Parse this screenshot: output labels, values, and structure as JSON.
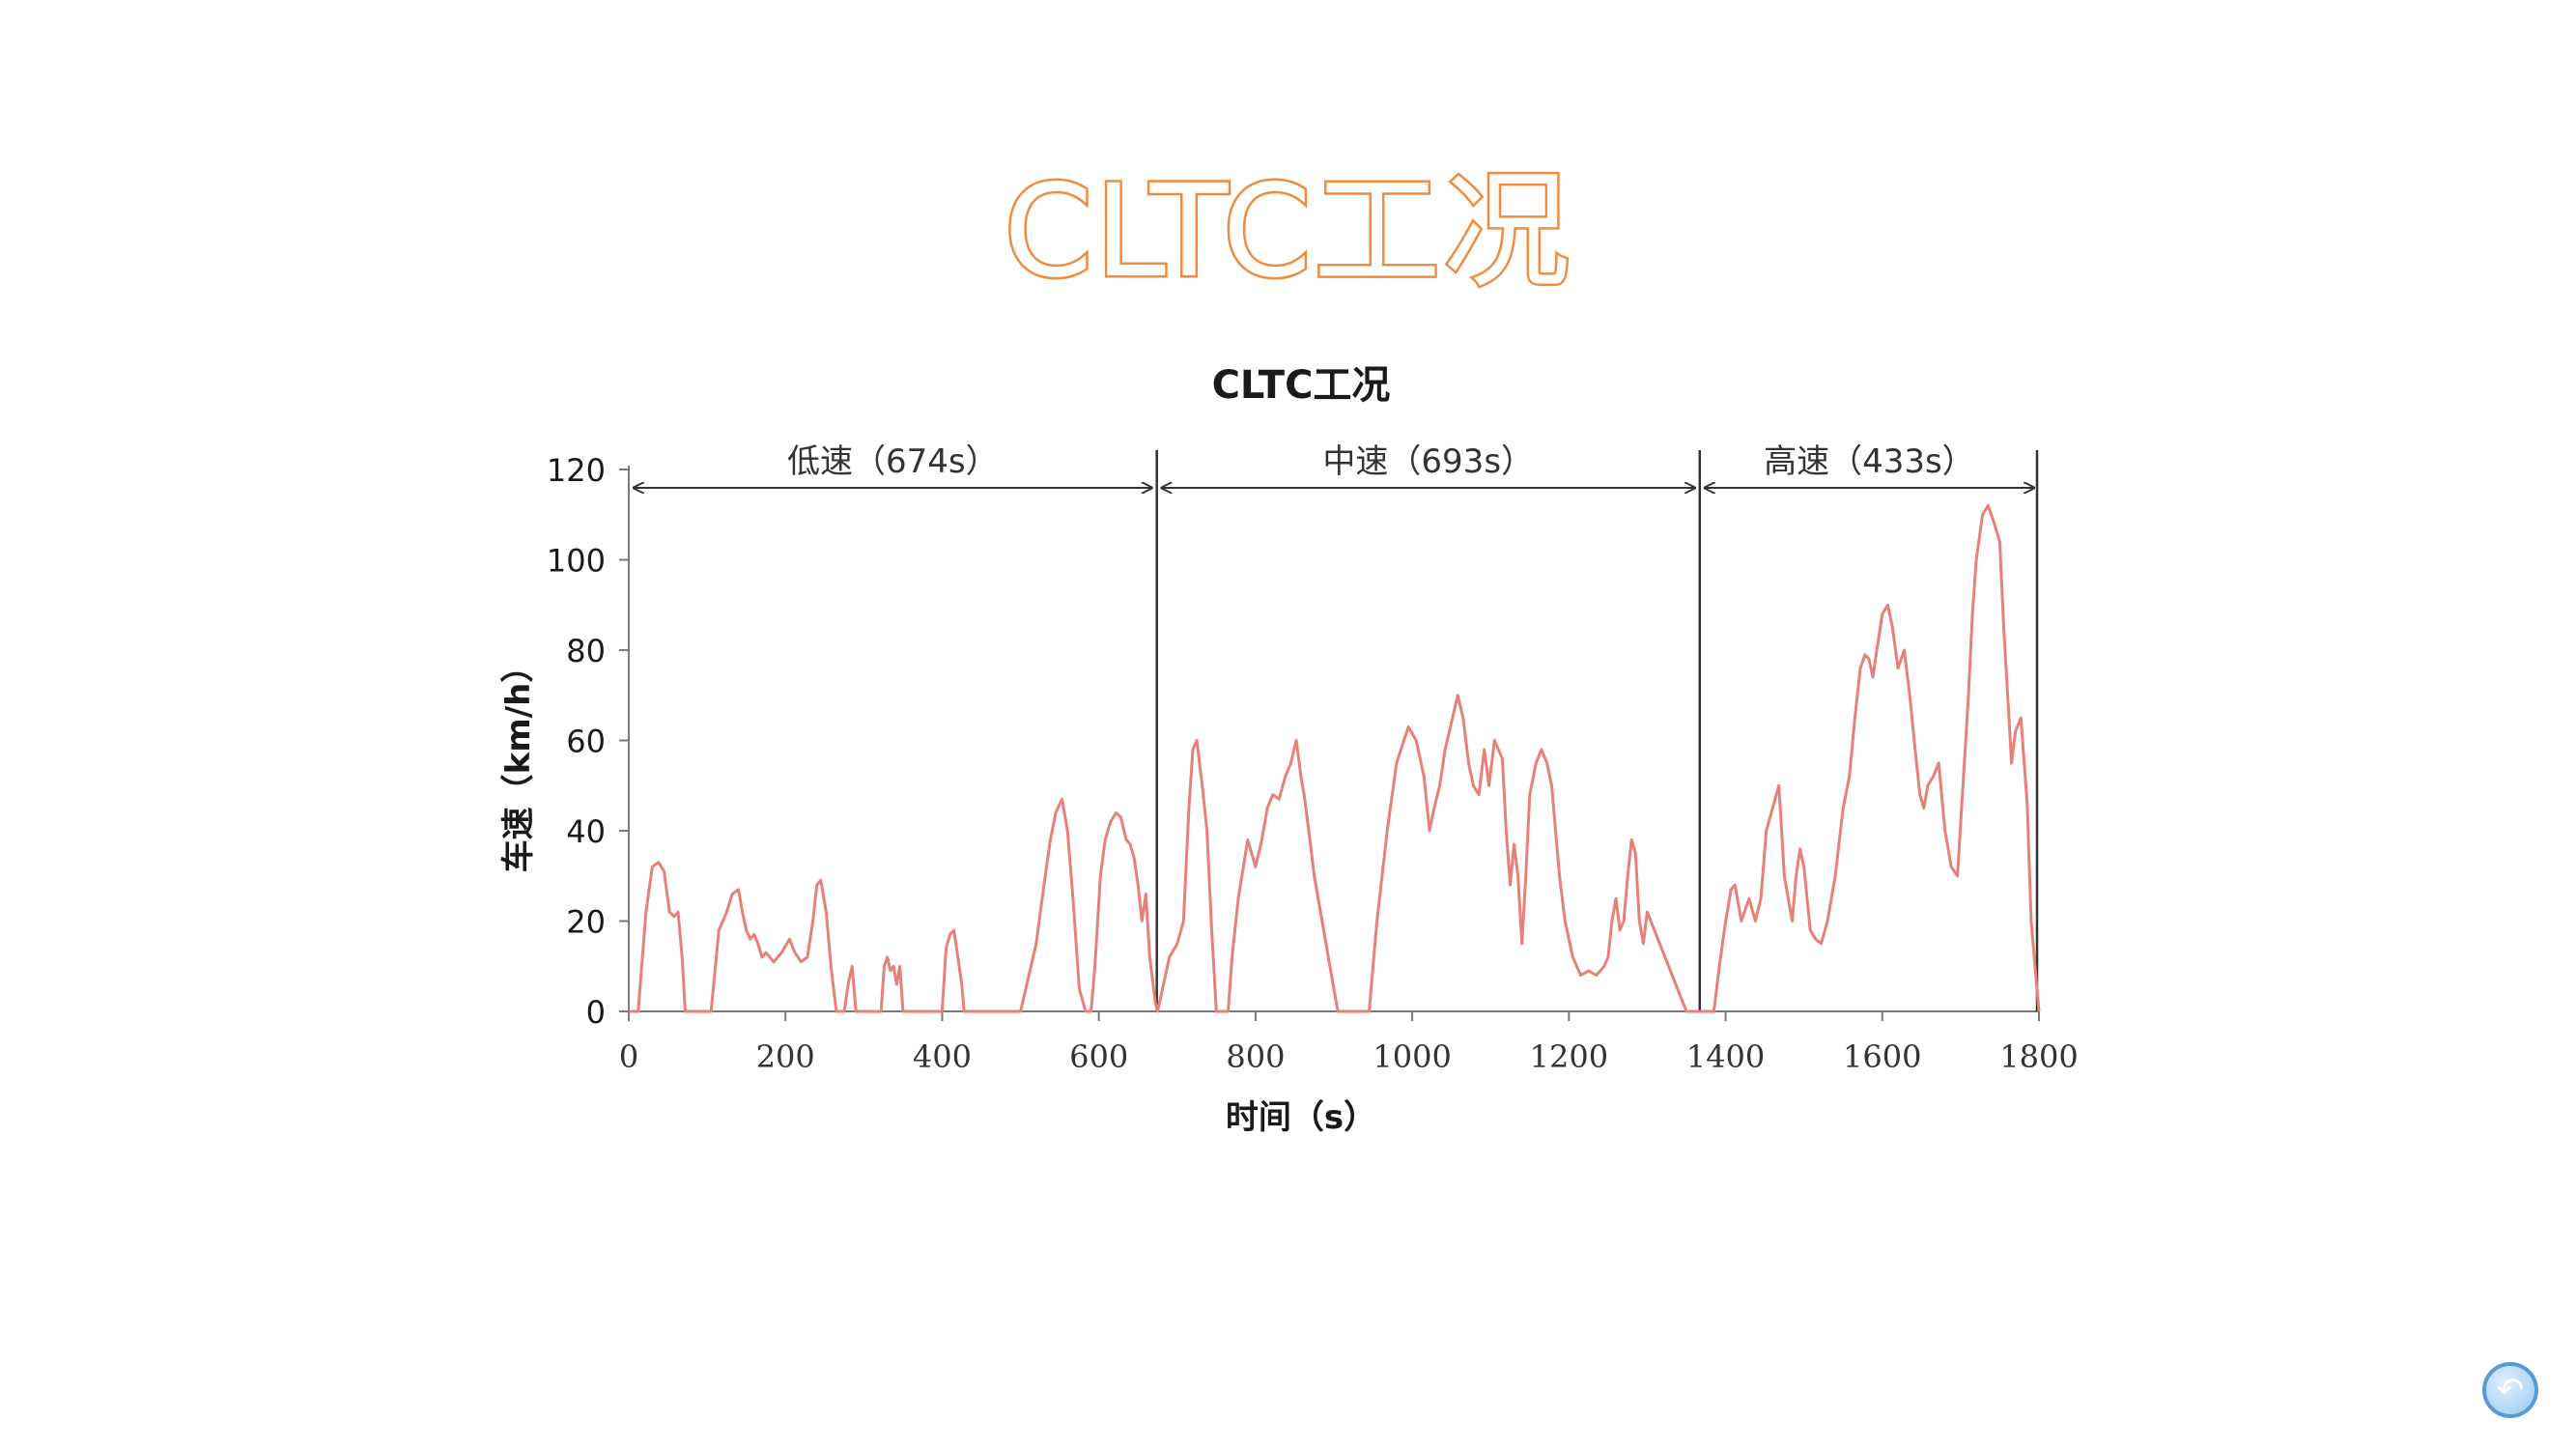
{
  "slide": {
    "title": "CLTC工况"
  },
  "chart_data": {
    "type": "line",
    "title": "CLTC工况",
    "xlabel": "时间（s）",
    "ylabel": "车速（km/h）",
    "xlim": [
      0,
      1800
    ],
    "ylim": [
      0,
      120
    ],
    "xticks": [
      0,
      200,
      400,
      600,
      800,
      1000,
      1200,
      1400,
      1600,
      1800
    ],
    "yticks": [
      0,
      20,
      40,
      60,
      80,
      100,
      120
    ],
    "grid": false,
    "line_color": "#e8807a",
    "phases": [
      {
        "label": "低速（674s）",
        "start": 0,
        "end": 674
      },
      {
        "label": "中速（693s）",
        "start": 674,
        "end": 1367
      },
      {
        "label": "高速（433s）",
        "start": 1367,
        "end": 1800
      }
    ],
    "series": [
      {
        "x": [
          0,
          12,
          22,
          30,
          38,
          45,
          52,
          58,
          63,
          68,
          72,
          78,
          84,
          95,
          105,
          115,
          125,
          132,
          140,
          145,
          150,
          155,
          160,
          165,
          170,
          175,
          185,
          195,
          205,
          212,
          220,
          228,
          235,
          240,
          245,
          252,
          258,
          265,
          270,
          275,
          280,
          285,
          290,
          300,
          315,
          322,
          326,
          330,
          334,
          338,
          342,
          346,
          350,
          355,
          360,
          370,
          380,
          390,
          400,
          405,
          410,
          415,
          420,
          425,
          428,
          435,
          460,
          500,
          520,
          530,
          538,
          545,
          553,
          560,
          567,
          575,
          583,
          590,
          595,
          602,
          608,
          615,
          622,
          628,
          635,
          640,
          645,
          650,
          655,
          660,
          665,
          672,
          675,
          690,
          700,
          708,
          715,
          720,
          725,
          732,
          738,
          744,
          750,
          758,
          765,
          770,
          778,
          790,
          800,
          808,
          815,
          822,
          830,
          838,
          845,
          852,
          858,
          862,
          868,
          875,
          885,
          895,
          905,
          915,
          925,
          935,
          945,
          955,
          968,
          980,
          995,
          1005,
          1015,
          1022,
          1028,
          1035,
          1042,
          1050,
          1058,
          1065,
          1072,
          1078,
          1085,
          1092,
          1098,
          1105,
          1110,
          1115,
          1120,
          1125,
          1130,
          1135,
          1140,
          1145,
          1150,
          1158,
          1165,
          1172,
          1178,
          1183,
          1188,
          1195,
          1205,
          1215,
          1225,
          1235,
          1245,
          1250,
          1255,
          1260,
          1265,
          1270,
          1275,
          1280,
          1285,
          1290,
          1295,
          1300,
          1350,
          1367,
          1378,
          1385,
          1392,
          1400,
          1407,
          1412,
          1420,
          1430,
          1438,
          1445,
          1452,
          1460,
          1468,
          1475,
          1480,
          1485,
          1490,
          1495,
          1500,
          1508,
          1515,
          1522,
          1530,
          1540,
          1550,
          1558,
          1565,
          1572,
          1578,
          1583,
          1588,
          1593,
          1600,
          1607,
          1613,
          1620,
          1628,
          1635,
          1642,
          1648,
          1653,
          1658,
          1665,
          1672,
          1680,
          1688,
          1696,
          1703,
          1710,
          1715,
          1720,
          1728,
          1735,
          1743,
          1750,
          1755,
          1760,
          1765,
          1770,
          1777,
          1785,
          1790,
          1795,
          1800
        ],
        "values": [
          0,
          0,
          22,
          32,
          33,
          31,
          22,
          21,
          22,
          12,
          0,
          0,
          0,
          0,
          0,
          18,
          22,
          26,
          27,
          22,
          18,
          16,
          17,
          15,
          12,
          13,
          11,
          13,
          16,
          13,
          11,
          12,
          20,
          28,
          29,
          22,
          10,
          0,
          0,
          0,
          6,
          10,
          0,
          0,
          0,
          0,
          10,
          12,
          9,
          10,
          6,
          10,
          0,
          0,
          0,
          0,
          0,
          0,
          0,
          14,
          17,
          18,
          12,
          6,
          0,
          0,
          0,
          0,
          15,
          28,
          38,
          44,
          47,
          40,
          25,
          5,
          0,
          0,
          10,
          30,
          38,
          42,
          44,
          43,
          38,
          37,
          34,
          28,
          20,
          26,
          12,
          2,
          0,
          12,
          15,
          20,
          45,
          58,
          60,
          50,
          40,
          18,
          0,
          0,
          0,
          12,
          25,
          38,
          32,
          38,
          45,
          48,
          47,
          52,
          55,
          60,
          52,
          48,
          40,
          30,
          20,
          10,
          0,
          0,
          0,
          0,
          0,
          20,
          40,
          55,
          63,
          60,
          52,
          40,
          45,
          50,
          58,
          64,
          70,
          65,
          55,
          50,
          48,
          58,
          50,
          60,
          58,
          56,
          40,
          28,
          37,
          30,
          15,
          30,
          48,
          55,
          58,
          55,
          50,
          40,
          30,
          20,
          12,
          8,
          9,
          8,
          10,
          12,
          20,
          25,
          18,
          20,
          30,
          38,
          35,
          20,
          15,
          22,
          0,
          0,
          0,
          0,
          10,
          20,
          27,
          28,
          20,
          25,
          20,
          25,
          40,
          45,
          50,
          30,
          25,
          20,
          30,
          36,
          32,
          18,
          16,
          15,
          20,
          30,
          45,
          52,
          65,
          76,
          79,
          78,
          74,
          80,
          88,
          90,
          85,
          76,
          80,
          70,
          58,
          48,
          45,
          50,
          52,
          55,
          40,
          32,
          30,
          50,
          70,
          88,
          100,
          110,
          112,
          108,
          104,
          85,
          70,
          55,
          62,
          65,
          46,
          20,
          10,
          0
        ]
      }
    ]
  }
}
